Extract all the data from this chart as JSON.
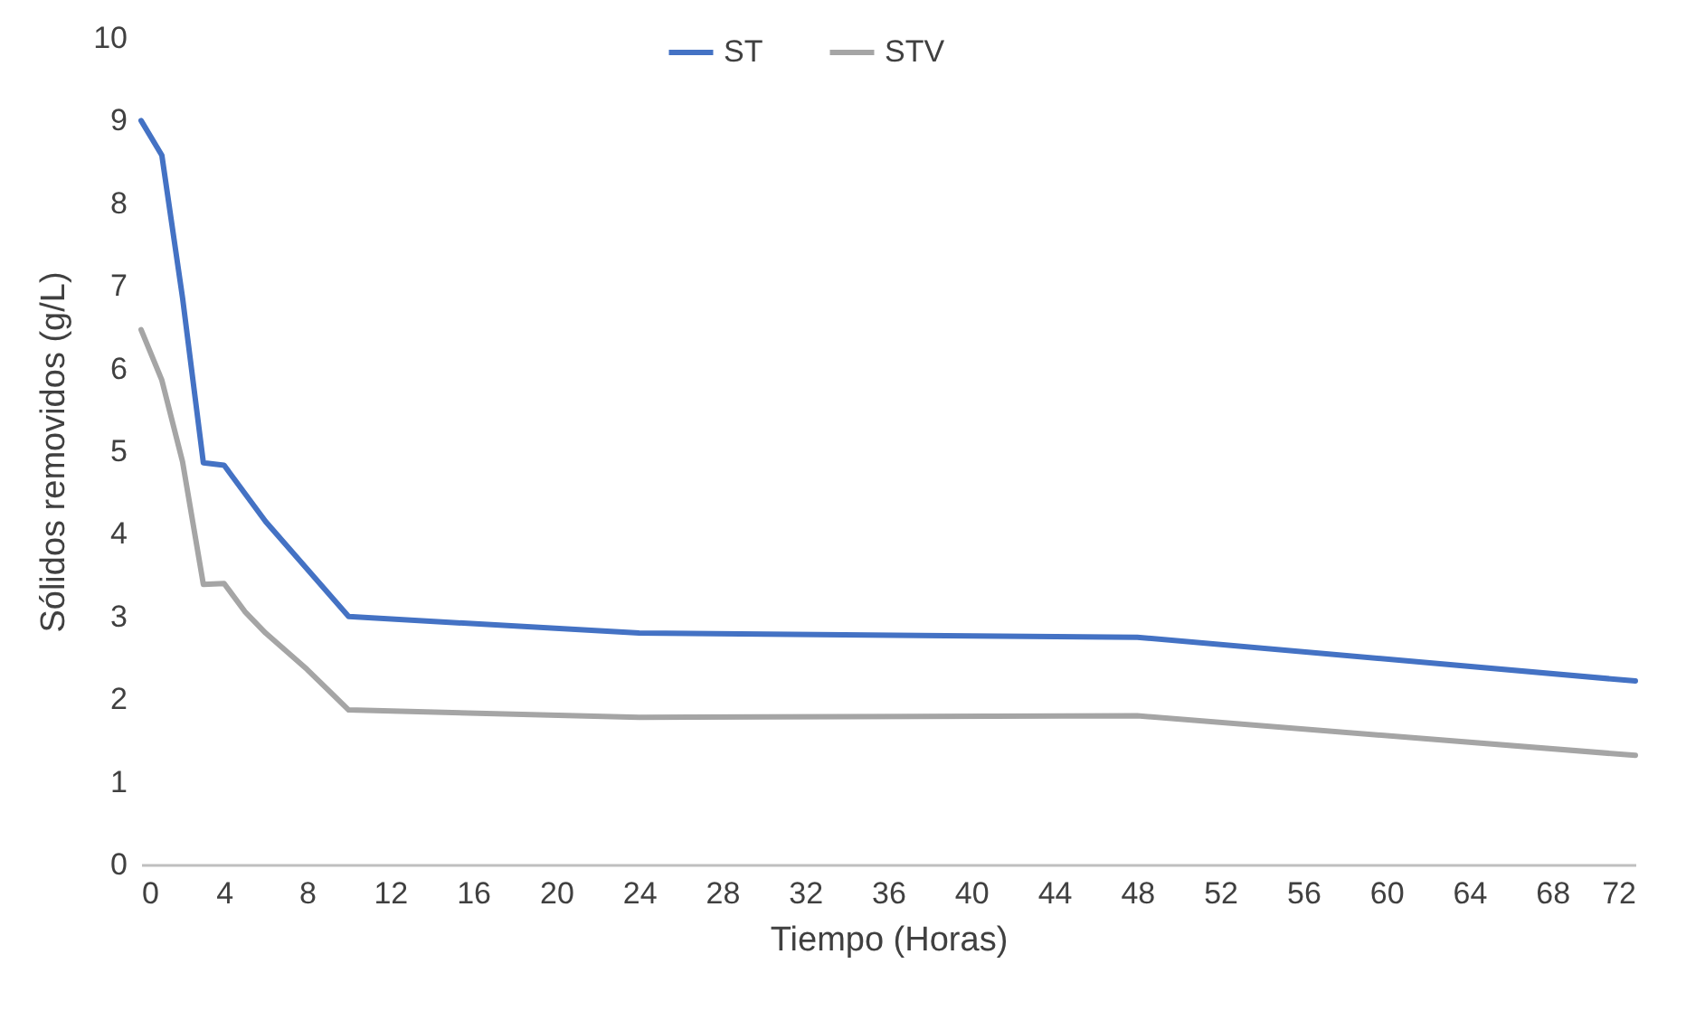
{
  "chart_data": {
    "type": "line",
    "xlabel": "Tiempo (Horas)",
    "ylabel": "Sólidos removidos (g/L)",
    "xlim": [
      0,
      72
    ],
    "xticks": [
      0,
      4,
      8,
      12,
      16,
      20,
      24,
      28,
      32,
      36,
      40,
      44,
      48,
      52,
      56,
      60,
      64,
      68,
      72
    ],
    "ylim": [
      0,
      10
    ],
    "yticks": [
      0,
      1,
      2,
      3,
      4,
      5,
      6,
      7,
      8,
      9,
      10
    ],
    "grid": false,
    "legend": "top",
    "marker": "none",
    "line_style": "solid",
    "series": [
      {
        "name": "ST",
        "color": "#4472c4",
        "x": [
          0,
          1,
          2,
          3,
          4,
          6,
          10,
          24,
          48,
          72
        ],
        "values": [
          9.0,
          8.58,
          6.85,
          4.86,
          4.83,
          4.15,
          3.0,
          2.8,
          2.75,
          2.22
        ]
      },
      {
        "name": "STV",
        "color": "#a5a5a5",
        "x": [
          0,
          1,
          2,
          3,
          4,
          5,
          6,
          8,
          10,
          24,
          48,
          72
        ],
        "values": [
          6.47,
          5.86,
          4.87,
          3.39,
          3.4,
          3.06,
          2.8,
          2.36,
          1.87,
          1.78,
          1.8,
          1.32
        ]
      }
    ]
  }
}
